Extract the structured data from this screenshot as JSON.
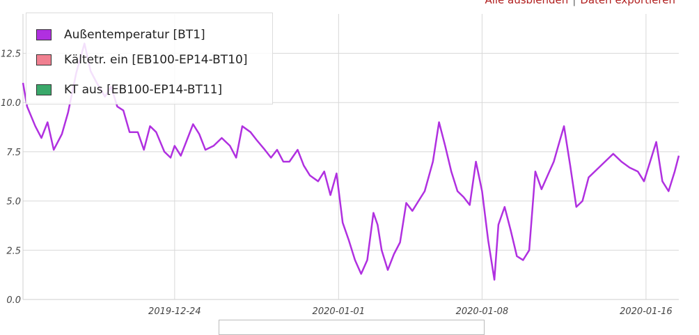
{
  "links": {
    "hide_all": "Alle ausblenden",
    "export": "Daten exportieren"
  },
  "legend": [
    {
      "label": "Außentemperatur [BT1]",
      "color": "#b030e0"
    },
    {
      "label": "Kältetr. ein [EB100-EP14-BT10]",
      "color": "#f08090"
    },
    {
      "label": "KT aus [EB100-EP14-BT11]",
      "color": "#3aa86a"
    }
  ],
  "chart_data": {
    "type": "line",
    "y_ticks": [
      "0.0",
      "2.5",
      "5.0",
      "7.5",
      "10.0",
      "12.5"
    ],
    "x_ticks": [
      {
        "label": "2019-12-24",
        "day": 8
      },
      {
        "label": "2020-01-01",
        "day": 16
      },
      {
        "label": "2020-01-08",
        "day": 23
      },
      {
        "label": "2020-01-16",
        "day": 31
      }
    ],
    "xlim": [
      0.6,
      32.6
    ],
    "ylim": [
      0,
      14.5
    ],
    "grid": true,
    "legend_position": "top-left",
    "series": [
      {
        "name": "Außentemperatur [BT1]",
        "color": "#b030e0",
        "points": [
          [
            0.6,
            11.0
          ],
          [
            0.8,
            9.8
          ],
          [
            1.2,
            8.8
          ],
          [
            1.5,
            8.2
          ],
          [
            1.8,
            9.0
          ],
          [
            2.1,
            7.6
          ],
          [
            2.5,
            8.4
          ],
          [
            2.8,
            9.5
          ],
          [
            3.2,
            11.5
          ],
          [
            3.6,
            13.0
          ],
          [
            3.9,
            11.6
          ],
          [
            4.2,
            11.0
          ],
          [
            4.6,
            10.3
          ],
          [
            4.9,
            10.8
          ],
          [
            5.2,
            9.8
          ],
          [
            5.5,
            9.6
          ],
          [
            5.8,
            8.5
          ],
          [
            6.2,
            8.5
          ],
          [
            6.5,
            7.6
          ],
          [
            6.8,
            8.8
          ],
          [
            7.1,
            8.5
          ],
          [
            7.5,
            7.5
          ],
          [
            7.8,
            7.2
          ],
          [
            8.0,
            7.8
          ],
          [
            8.3,
            7.3
          ],
          [
            8.6,
            8.1
          ],
          [
            8.9,
            8.9
          ],
          [
            9.2,
            8.4
          ],
          [
            9.5,
            7.6
          ],
          [
            9.9,
            7.8
          ],
          [
            10.3,
            8.2
          ],
          [
            10.7,
            7.8
          ],
          [
            11.0,
            7.2
          ],
          [
            11.3,
            8.8
          ],
          [
            11.7,
            8.5
          ],
          [
            12.0,
            8.1
          ],
          [
            12.4,
            7.6
          ],
          [
            12.7,
            7.2
          ],
          [
            13.0,
            7.6
          ],
          [
            13.3,
            7.0
          ],
          [
            13.6,
            7.0
          ],
          [
            14.0,
            7.6
          ],
          [
            14.3,
            6.8
          ],
          [
            14.6,
            6.3
          ],
          [
            15.0,
            6.0
          ],
          [
            15.3,
            6.5
          ],
          [
            15.6,
            5.3
          ],
          [
            15.9,
            6.4
          ],
          [
            16.2,
            3.9
          ],
          [
            16.5,
            3.0
          ],
          [
            16.8,
            2.0
          ],
          [
            17.1,
            1.3
          ],
          [
            17.4,
            2.0
          ],
          [
            17.7,
            4.4
          ],
          [
            17.9,
            3.8
          ],
          [
            18.1,
            2.5
          ],
          [
            18.4,
            1.5
          ],
          [
            18.7,
            2.3
          ],
          [
            19.0,
            2.9
          ],
          [
            19.3,
            4.9
          ],
          [
            19.6,
            4.5
          ],
          [
            19.9,
            5.0
          ],
          [
            20.2,
            5.5
          ],
          [
            20.6,
            7.0
          ],
          [
            20.9,
            9.0
          ],
          [
            21.2,
            7.8
          ],
          [
            21.5,
            6.5
          ],
          [
            21.8,
            5.5
          ],
          [
            22.1,
            5.2
          ],
          [
            22.4,
            4.8
          ],
          [
            22.7,
            7.0
          ],
          [
            23.0,
            5.5
          ],
          [
            23.3,
            3.0
          ],
          [
            23.6,
            1.0
          ],
          [
            23.8,
            3.8
          ],
          [
            24.1,
            4.7
          ],
          [
            24.4,
            3.5
          ],
          [
            24.7,
            2.2
          ],
          [
            25.0,
            2.0
          ],
          [
            25.3,
            2.5
          ],
          [
            25.6,
            6.5
          ],
          [
            25.9,
            5.6
          ],
          [
            26.2,
            6.3
          ],
          [
            26.5,
            7.0
          ],
          [
            26.8,
            8.1
          ],
          [
            27.0,
            8.8
          ],
          [
            27.3,
            6.8
          ],
          [
            27.6,
            4.7
          ],
          [
            27.9,
            5.0
          ],
          [
            28.2,
            6.2
          ],
          [
            28.6,
            6.6
          ],
          [
            29.0,
            7.0
          ],
          [
            29.4,
            7.4
          ],
          [
            29.8,
            7.0
          ],
          [
            30.2,
            6.7
          ],
          [
            30.6,
            6.5
          ],
          [
            30.9,
            6.0
          ],
          [
            31.2,
            7.0
          ],
          [
            31.5,
            8.0
          ],
          [
            31.8,
            6.0
          ],
          [
            32.1,
            5.5
          ],
          [
            32.4,
            6.5
          ],
          [
            32.6,
            7.3
          ]
        ]
      }
    ]
  }
}
